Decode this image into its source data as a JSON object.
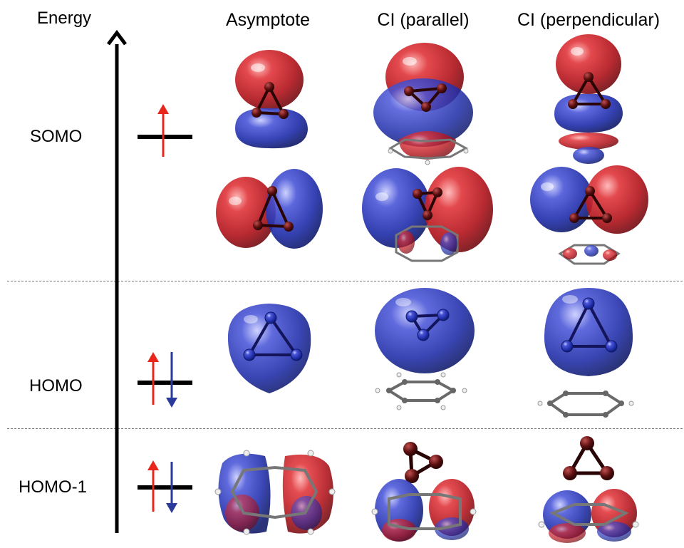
{
  "axis": {
    "label": "Energy"
  },
  "columns": [
    "Asymptote",
    "CI (parallel)",
    "CI (perpendicular)"
  ],
  "rows": [
    {
      "label": "SOMO",
      "electrons": "single-up"
    },
    {
      "label": "HOMO",
      "electrons": "pair"
    },
    {
      "label": "HOMO-1",
      "electrons": "pair"
    }
  ],
  "colors": {
    "positive_lobe": "#c0141a",
    "negative_lobe": "#1e2fb0",
    "spin_up": "#e8261c",
    "spin_down": "#2a3a9a",
    "atom_oxygen": "#5a0f0f",
    "atom_carbon": "#555555",
    "atom_hydrogen": "#e8e8e8"
  }
}
